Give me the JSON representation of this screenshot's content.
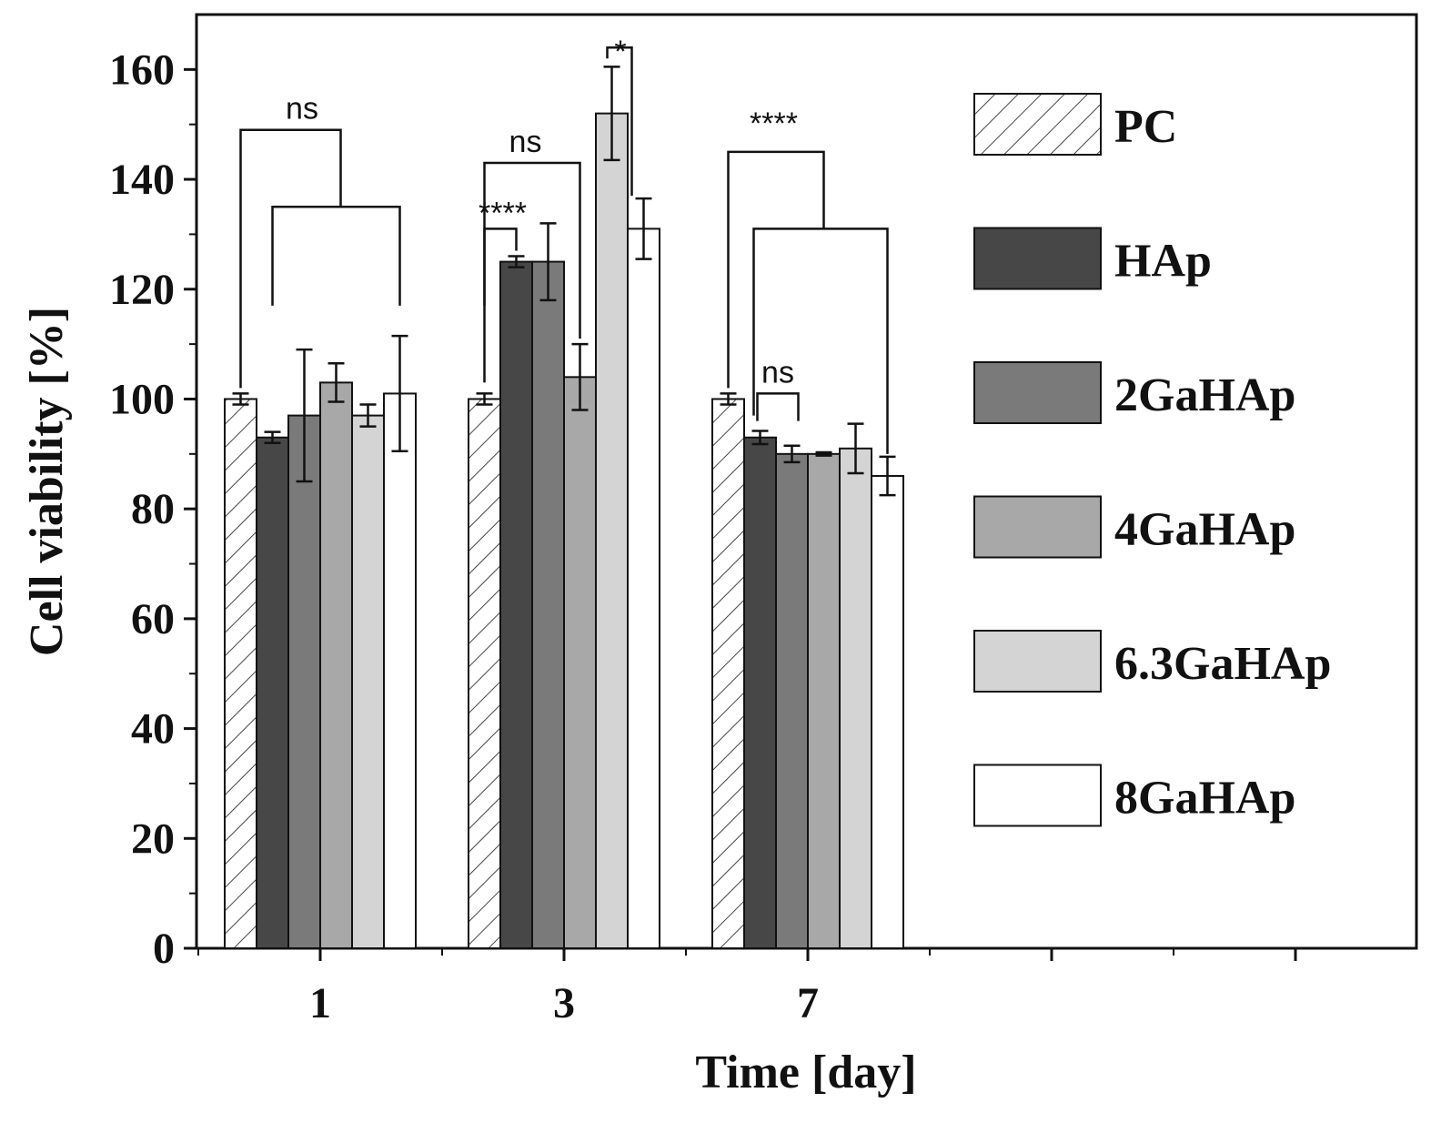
{
  "chart_data": {
    "type": "bar",
    "xlabel": "Time [day]",
    "ylabel": "Cell viability [%]",
    "ylim": [
      0,
      170
    ],
    "yticks": [
      0,
      20,
      40,
      60,
      80,
      100,
      120,
      140,
      160
    ],
    "categories": [
      "1",
      "3",
      "7"
    ],
    "series": [
      {
        "name": "PC",
        "values": [
          100,
          100,
          100
        ],
        "errors": [
          1,
          1,
          1
        ],
        "fill": "#ffffff",
        "pattern": "hatch"
      },
      {
        "name": "HAp",
        "values": [
          93,
          125,
          93
        ],
        "errors": [
          1,
          1,
          1.2
        ],
        "fill": "#474747"
      },
      {
        "name": "2GaHAp",
        "values": [
          97,
          125,
          90
        ],
        "errors": [
          12,
          7,
          1.5
        ],
        "fill": "#7a7a7a"
      },
      {
        "name": "4GaHAp",
        "values": [
          103,
          104,
          90
        ],
        "errors": [
          3.5,
          6,
          0.3
        ],
        "fill": "#a8a8a8"
      },
      {
        "name": "6.3GaHAp",
        "values": [
          97,
          152,
          91
        ],
        "errors": [
          2,
          8.5,
          4.5
        ],
        "fill": "#d4d4d4"
      },
      {
        "name": "8GaHAp",
        "values": [
          101,
          131,
          86
        ],
        "errors": [
          10.5,
          5.5,
          3.5
        ],
        "fill": "#ffffff"
      }
    ],
    "significance": [
      {
        "label": "ns",
        "day": "1"
      },
      {
        "label": "****",
        "day": "3"
      },
      {
        "label": "ns",
        "day": "3"
      },
      {
        "label": "*",
        "day": "3"
      },
      {
        "label": "****",
        "day": "7"
      },
      {
        "label": "ns",
        "day": "7"
      }
    ],
    "legend_position": "right"
  }
}
